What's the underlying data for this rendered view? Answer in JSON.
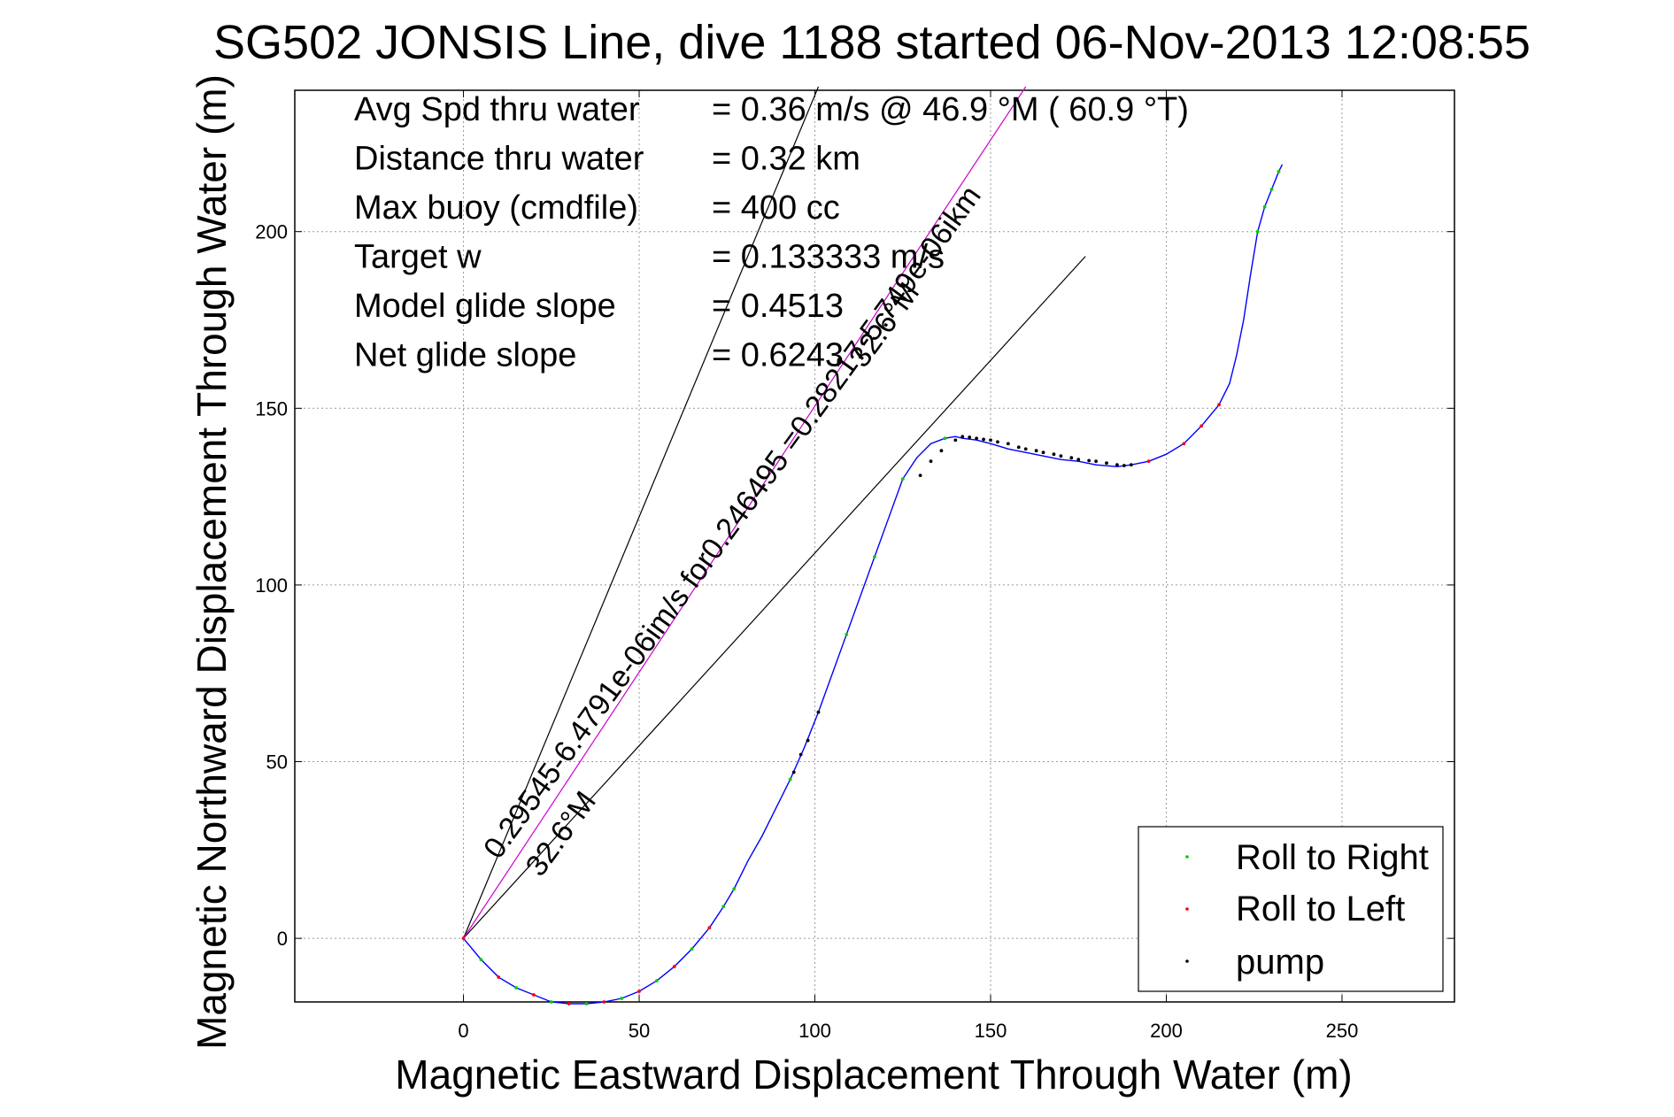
{
  "chart_data": {
    "type": "scatter",
    "title": "SG502 JONSIS Line, dive 1188 started 06-Nov-2013 12:08:55",
    "xlabel": "Magnetic Eastward Displacement Through Water (m)",
    "ylabel": "Magnetic Northward Displacement Through Water (m)",
    "xlim": [
      -48,
      282
    ],
    "ylim": [
      -18,
      240
    ],
    "xticks": [
      0,
      50,
      100,
      150,
      200,
      250
    ],
    "yticks": [
      0,
      50,
      100,
      150,
      200
    ],
    "grid": true,
    "legend_position": "bottom-right",
    "stats": [
      {
        "label": "Avg Spd thru water",
        "value": "=  0.36 m/s @  46.9 °M ( 60.9 °T)"
      },
      {
        "label": "Distance thru water",
        "value": "=  0.32 km"
      },
      {
        "label": "Max buoy (cmdfile)",
        "value": "= 400 cc"
      },
      {
        "label": "Target w",
        "value": "= 0.133333 m/s"
      },
      {
        "label": "Model glide slope",
        "value": "= 0.4513"
      },
      {
        "label": "Net glide slope",
        "value": "= 0.6243"
      }
    ],
    "reference_lines": [
      {
        "x": [
          0,
          101
        ],
        "y": [
          0,
          241
        ],
        "color": "#000000"
      },
      {
        "x": [
          0,
          177
        ],
        "y": [
          0,
          193
        ],
        "color": "#000000"
      },
      {
        "x": [
          0,
          160
        ],
        "y": [
          0,
          241
        ],
        "color": "#cc00cc"
      }
    ],
    "annotations": [
      {
        "text": "0.29545-6.4791e-06im/s for0.246495 =0.28217-5.749e-06ikm",
        "x": 10,
        "y": 22,
        "angle_deg": 54
      },
      {
        "text": "32.6°M",
        "x": 22,
        "y": 17,
        "angle_deg": 54
      },
      {
        "text": "32.6°M",
        "x": 114,
        "y": 161,
        "angle_deg": 54
      }
    ],
    "series": [
      {
        "name": "track",
        "color": "#0000ff",
        "x": [
          0,
          5,
          10,
          15,
          20,
          25,
          30,
          35,
          40,
          45,
          50,
          55,
          60,
          65,
          70,
          74,
          77,
          81,
          85,
          89,
          93,
          97,
          101,
          105,
          109,
          113,
          117,
          121,
          125,
          129,
          133,
          137,
          140,
          142,
          146,
          150,
          155,
          160,
          165,
          170,
          175,
          180,
          186,
          190,
          195,
          200,
          205,
          210,
          215,
          218,
          220,
          222,
          224,
          226,
          228,
          230,
          232,
          233
        ],
        "y": [
          0,
          -6,
          -11,
          -14,
          -16,
          -18,
          -18.5,
          -18.5,
          -18,
          -17,
          -15,
          -12,
          -8,
          -3,
          3,
          9,
          14,
          22,
          29,
          37,
          45,
          54,
          64,
          75,
          86,
          97,
          108,
          119,
          130,
          136,
          140,
          141.5,
          142,
          141.5,
          141,
          140,
          138.5,
          137.5,
          136.5,
          135.5,
          135,
          134,
          133.5,
          134,
          135,
          137,
          140,
          145,
          151,
          157,
          165,
          175,
          188,
          200,
          207,
          212,
          217,
          219
        ]
      },
      {
        "name": "Roll to Right",
        "color": "#00cc00",
        "x": [
          5,
          15,
          25,
          35,
          45,
          55,
          65,
          74,
          77,
          93,
          101,
          109,
          117,
          125,
          137,
          226,
          228,
          230,
          232
        ],
        "y": [
          -6,
          -14,
          -18,
          -18.5,
          -17,
          -12,
          -3,
          9,
          14,
          45,
          64,
          86,
          108,
          130,
          141.5,
          200,
          207,
          212,
          217
        ]
      },
      {
        "name": "Roll to Left",
        "color": "#ff0000",
        "x": [
          0,
          10,
          20,
          30,
          40,
          50,
          60,
          70,
          195,
          205,
          210,
          215
        ],
        "y": [
          0,
          -11,
          -16,
          -18.5,
          -18,
          -15,
          -8,
          3,
          135,
          140,
          145,
          151
        ]
      },
      {
        "name": "pump",
        "color": "#000000",
        "x": [
          94,
          96,
          98,
          101,
          130,
          133,
          136,
          140,
          142,
          144,
          146,
          148,
          150,
          152,
          155,
          158,
          160,
          163,
          165,
          168,
          170,
          173,
          175,
          178,
          180,
          183,
          186,
          188,
          190
        ],
        "y": [
          47,
          52,
          56,
          64,
          131,
          135,
          138,
          141,
          142,
          141.8,
          141.5,
          141.2,
          141,
          140.5,
          140,
          139,
          138.5,
          138,
          137.5,
          137,
          136.5,
          136,
          135.5,
          135.2,
          135,
          134.5,
          134,
          133.8,
          134
        ]
      }
    ],
    "legend": [
      {
        "label": "Roll to Right",
        "color": "#00cc00"
      },
      {
        "label": "Roll to Left",
        "color": "#ff0000"
      },
      {
        "label": "pump",
        "color": "#000000"
      }
    ]
  }
}
